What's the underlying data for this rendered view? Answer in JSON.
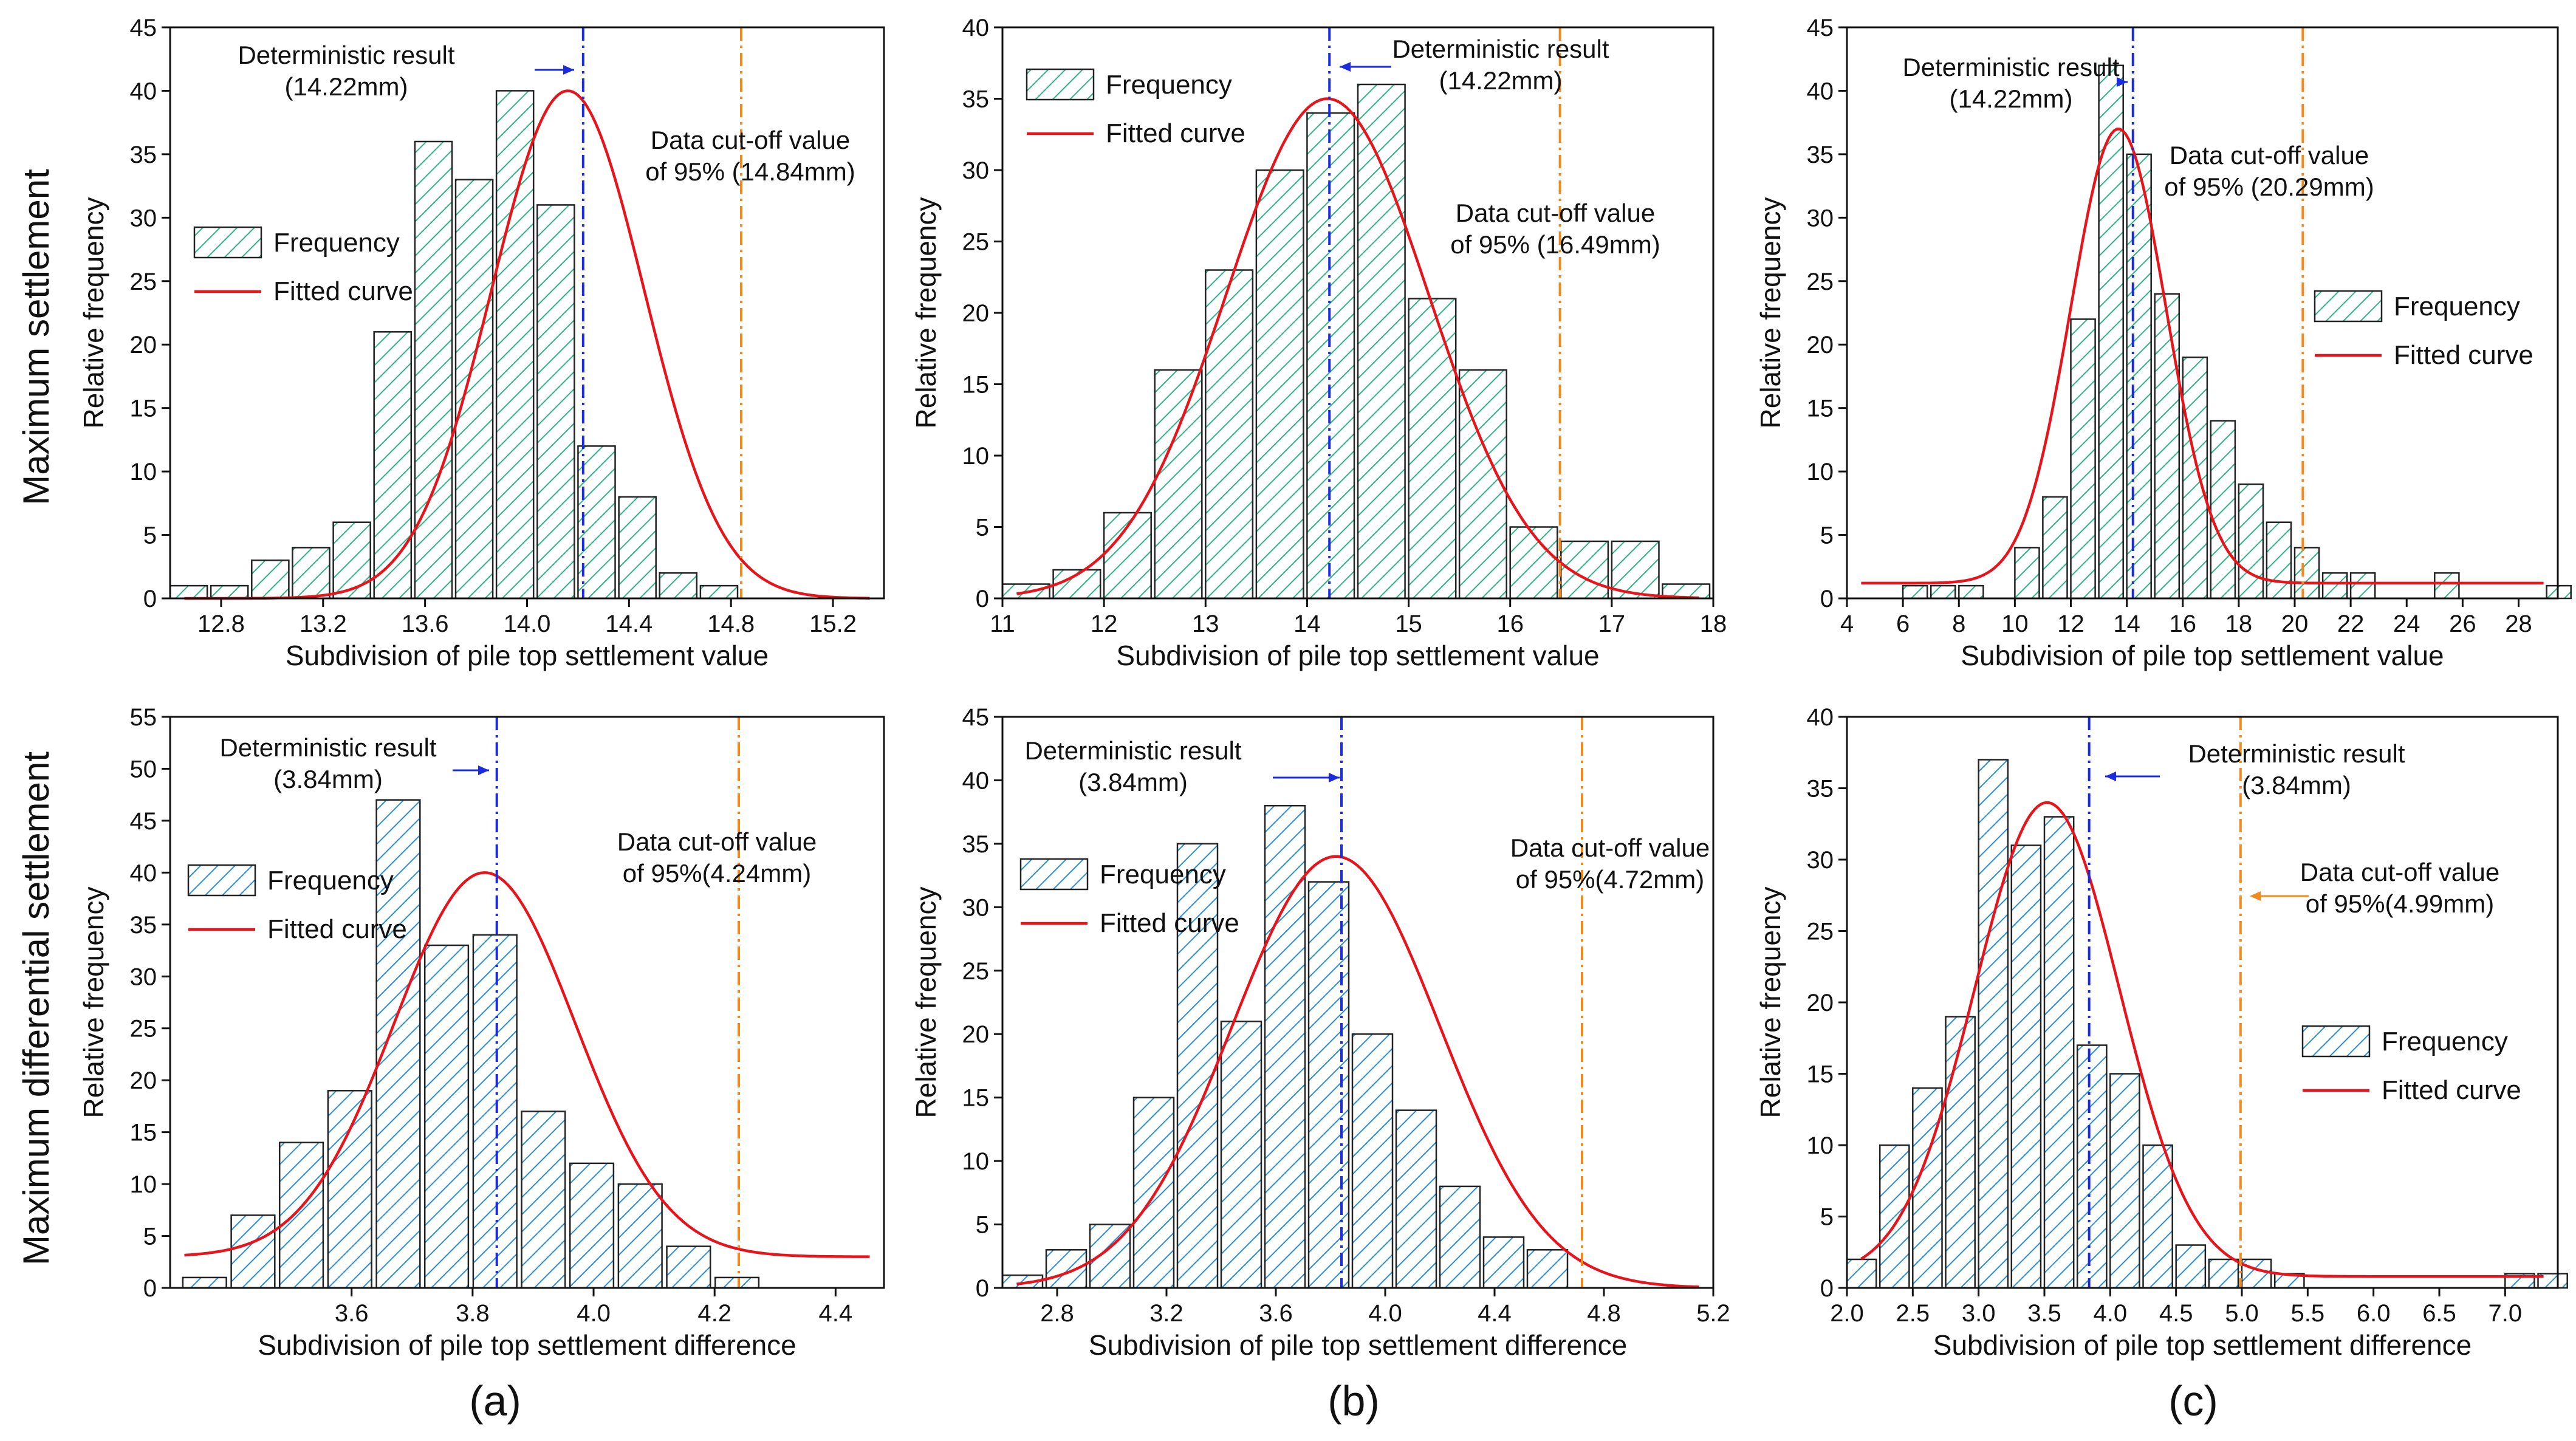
{
  "row_labels": [
    "Maximum settlement",
    "Maximum differential settlement"
  ],
  "panel_labels": [
    "(a)",
    "(b)",
    "(c)"
  ],
  "legend": {
    "frequency": "Frequency",
    "fitted": "Fitted curve"
  },
  "colors": {
    "green_hatch": "#2fb38a",
    "blue_hatch": "#2b8fd6",
    "curve": "#e8141b",
    "deterministic": "#1a2be0",
    "cutoff": "#f08a1c"
  },
  "chart_data": [
    {
      "type": "bar",
      "panel": "a-top",
      "xlabel": "Subdivision of pile top settlement value",
      "ylabel": "Relative frequency",
      "xlim": [
        12.6,
        15.4
      ],
      "ylim": [
        0,
        45
      ],
      "xticks": [
        "12.8",
        "13.2",
        "13.6",
        "14.0",
        "14.4",
        "14.8",
        "15.2"
      ],
      "yticks": [
        "0",
        "5",
        "10",
        "15",
        "20",
        "25",
        "30",
        "35",
        "40",
        "45"
      ],
      "bin_width": 0.16,
      "centers": [
        12.68,
        12.84,
        13.0,
        13.16,
        13.32,
        13.48,
        13.64,
        13.8,
        13.96,
        14.12,
        14.28,
        14.44,
        14.6,
        14.76,
        14.92,
        15.08,
        15.24
      ],
      "values": [
        1,
        1,
        3,
        4,
        6,
        21,
        36,
        33,
        40,
        31,
        12,
        8,
        2,
        1,
        0,
        0,
        0
      ],
      "fit": {
        "mean": 14.16,
        "sd": 0.3,
        "peak": 40
      },
      "deterministic": {
        "x": 14.22,
        "label1": "Deterministic result",
        "label2": "(14.22mm)"
      },
      "cutoff": {
        "x": 14.84,
        "label1": "Data cut-off value",
        "label2": "of 95% (14.84mm)"
      }
    },
    {
      "type": "bar",
      "panel": "b-top",
      "xlabel": "Subdivision of pile top settlement value",
      "ylabel": "Relative frequency",
      "xlim": [
        11,
        18
      ],
      "ylim": [
        0,
        40
      ],
      "xticks": [
        "11",
        "12",
        "13",
        "14",
        "15",
        "16",
        "17",
        "18"
      ],
      "yticks": [
        "0",
        "5",
        "10",
        "15",
        "20",
        "25",
        "30",
        "35",
        "40"
      ],
      "bin_width": 0.5,
      "centers": [
        11.25,
        11.75,
        12.25,
        12.75,
        13.25,
        13.75,
        14.25,
        14.75,
        15.25,
        15.75,
        16.25,
        16.75,
        17.25,
        17.75
      ],
      "values": [
        1,
        2,
        6,
        16,
        23,
        30,
        34,
        36,
        21,
        16,
        5,
        4,
        4,
        1
      ],
      "fit": {
        "mean": 14.2,
        "sd": 1.0,
        "peak": 35
      },
      "deterministic": {
        "x": 14.22,
        "label1": "Deterministic result",
        "label2": "(14.22mm)"
      },
      "cutoff": {
        "x": 16.49,
        "label1": "Data cut-off value",
        "label2": "of 95% (16.49mm)"
      }
    },
    {
      "type": "bar",
      "panel": "c-top",
      "xlabel": "Subdivision of pile top settlement value",
      "ylabel": "Relative frequency",
      "xlim": [
        4,
        29.4
      ],
      "ylim": [
        0,
        45
      ],
      "xticks": [
        "4",
        "6",
        "8",
        "10",
        "12",
        "14",
        "16",
        "18",
        "20",
        "22",
        "24",
        "26",
        "28"
      ],
      "yticks": [
        "0",
        "5",
        "10",
        "15",
        "20",
        "25",
        "30",
        "35",
        "40",
        "45"
      ],
      "bin_width": 1.0,
      "centers": [
        6.5,
        7.5,
        8.5,
        10.5,
        11.5,
        12.5,
        13.5,
        14.5,
        15.5,
        16.5,
        17.5,
        18.5,
        19.5,
        20.5,
        21.5,
        22.5,
        25.5,
        29.5
      ],
      "values": [
        1,
        1,
        1,
        4,
        8,
        22,
        42,
        35,
        24,
        19,
        14,
        9,
        6,
        4,
        2,
        2,
        2,
        1
      ],
      "fit": {
        "mean": 13.7,
        "sd": 1.7,
        "peak": 37,
        "baseline": 1.2
      },
      "deterministic": {
        "x": 14.22,
        "label1": "Deterministic result",
        "label2": "(14.22mm)"
      },
      "cutoff": {
        "x": 20.29,
        "label1": "Data cut-off value",
        "label2": "of 95% (20.29mm)"
      }
    },
    {
      "type": "bar",
      "panel": "a-bottom",
      "xlabel": "Subdivision of pile top settlement difference",
      "ylabel": "Relative frequency",
      "xlim": [
        3.3,
        4.48
      ],
      "ylim": [
        0,
        55
      ],
      "xticks": [
        "3.6",
        "3.8",
        "4.0",
        "4.2",
        "4.4"
      ],
      "yticks": [
        "0",
        "5",
        "10",
        "15",
        "20",
        "25",
        "30",
        "35",
        "40",
        "45",
        "50",
        "55"
      ],
      "bin_width": 0.078,
      "centers": [
        3.36,
        3.44,
        3.52,
        3.6,
        3.68,
        3.76,
        3.84,
        3.92,
        4.0,
        4.08,
        4.16,
        4.24,
        4.32,
        4.4
      ],
      "values": [
        1,
        7,
        14,
        19,
        47,
        33,
        34,
        17,
        12,
        10,
        4,
        1,
        0,
        0
      ],
      "fit": {
        "mean": 3.82,
        "sd": 0.15,
        "peak": 40,
        "baseline": 3
      },
      "deterministic": {
        "x": 3.84,
        "label1": "Deterministic result",
        "label2": "(3.84mm)"
      },
      "cutoff": {
        "x": 4.24,
        "label1": "Data cut-off value",
        "label2": "of 95%(4.24mm)"
      }
    },
    {
      "type": "bar",
      "panel": "b-bottom",
      "xlabel": "Subdivision of pile top settlement difference",
      "ylabel": "Relative frequency",
      "xlim": [
        2.6,
        5.2
      ],
      "ylim": [
        0,
        45
      ],
      "xticks": [
        "2.8",
        "3.2",
        "3.6",
        "4.0",
        "4.4",
        "4.8",
        "5.2"
      ],
      "yticks": [
        "0",
        "5",
        "10",
        "15",
        "20",
        "25",
        "30",
        "35",
        "40",
        "45"
      ],
      "bin_width": 0.16,
      "centers": [
        2.68,
        2.84,
        3.0,
        3.16,
        3.32,
        3.48,
        3.64,
        3.8,
        3.96,
        4.12,
        4.28,
        4.44,
        4.6,
        4.76,
        4.92,
        5.08
      ],
      "values": [
        1,
        3,
        5,
        15,
        35,
        21,
        38,
        32,
        20,
        14,
        8,
        4,
        3,
        0,
        0,
        0
      ],
      "fit": {
        "mean": 3.82,
        "sd": 0.38,
        "peak": 34
      },
      "deterministic": {
        "x": 3.84,
        "label1": "Deterministic result",
        "label2": "(3.84mm)"
      },
      "cutoff": {
        "x": 4.72,
        "label1": "Data cut-off value",
        "label2": "of 95%(4.72mm)"
      }
    },
    {
      "type": "bar",
      "panel": "c-bottom",
      "xlabel": "Subdivision of pile top settlement difference",
      "ylabel": "Relative frequency",
      "xlim": [
        2.0,
        7.4
      ],
      "ylim": [
        0,
        40
      ],
      "xticks": [
        "2.0",
        "2.5",
        "3.0",
        "3.5",
        "4.0",
        "4.5",
        "5.0",
        "5.5",
        "6.0",
        "6.5",
        "7.0"
      ],
      "yticks": [
        "0",
        "5",
        "10",
        "15",
        "20",
        "25",
        "30",
        "35",
        "40"
      ],
      "bin_width": 0.25,
      "centers": [
        2.125,
        2.375,
        2.625,
        2.875,
        3.125,
        3.375,
        3.625,
        3.875,
        4.125,
        4.375,
        4.625,
        4.875,
        5.125,
        5.375,
        7.125,
        7.375
      ],
      "values": [
        2,
        10,
        14,
        19,
        37,
        31,
        33,
        17,
        15,
        10,
        3,
        2,
        2,
        1,
        1,
        1
      ],
      "fit": {
        "mean": 3.52,
        "sd": 0.55,
        "peak": 34,
        "baseline": 0.8
      },
      "deterministic": {
        "x": 3.84,
        "label1": "Deterministic result",
        "label2": "(3.84mm)"
      },
      "cutoff": {
        "x": 4.99,
        "label1": "Data cut-off value",
        "label2": "of 95%(4.99mm)"
      }
    }
  ]
}
